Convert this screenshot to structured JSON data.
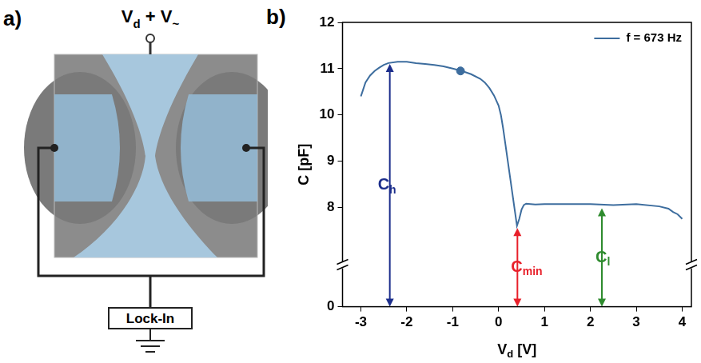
{
  "panel_a": {
    "label": "a)",
    "top_label": [
      {
        "text": "V",
        "sub": "d"
      },
      {
        "text": " + V",
        "sub": "~"
      }
    ],
    "box_label": "Lock-In"
  },
  "chart_data": {
    "panel_label": "b)",
    "type": "line",
    "x_label": [
      {
        "text": "V",
        "sub": "d"
      },
      {
        "text": " [V]"
      }
    ],
    "y_label": "C [pF]",
    "x": [
      -3,
      -2.95,
      -2.9,
      -2.8,
      -2.7,
      -2.6,
      -2.5,
      -2.4,
      -2.2,
      -2,
      -1.8,
      -1.6,
      -1.4,
      -1.2,
      -1,
      -0.8,
      -0.6,
      -0.4,
      -0.3,
      -0.2,
      -0.1,
      0,
      0.05,
      0.1,
      0.15,
      0.2,
      0.25,
      0.3,
      0.35,
      0.4,
      0.45,
      0.5,
      0.55,
      0.6,
      0.8,
      1,
      1.5,
      2,
      2.5,
      3,
      3.5,
      3.7,
      3.8,
      3.9,
      4
    ],
    "series": [
      {
        "name": "f = 673 Hz",
        "color": "#3d6d9e",
        "values": [
          10.4,
          10.55,
          10.7,
          10.85,
          10.95,
          11.02,
          11.08,
          11.12,
          11.15,
          11.15,
          11.12,
          11.1,
          11.08,
          11.05,
          11.0,
          10.95,
          10.88,
          10.78,
          10.7,
          10.58,
          10.42,
          10.2,
          10.0,
          9.7,
          9.35,
          9.0,
          8.65,
          8.3,
          7.95,
          7.6,
          7.75,
          7.95,
          8.05,
          8.08,
          8.06,
          8.07,
          8.07,
          8.07,
          8.05,
          8.07,
          8.02,
          7.97,
          7.9,
          7.85,
          7.75
        ]
      }
    ],
    "highlight": {
      "x": -0.83,
      "y": 10.95
    },
    "xlim": [
      -3.4,
      4.2
    ],
    "xticks": [
      -3,
      -2,
      -1,
      0,
      1,
      2,
      3,
      4
    ],
    "ylim": [
      0,
      12
    ],
    "yticks": [
      0,
      8,
      9,
      10,
      11,
      12
    ],
    "ybreak": [
      0.9,
      6.75
    ],
    "annotations": [
      {
        "label": [
          {
            "text": "C",
            "sub": "h"
          }
        ],
        "x": -2.37,
        "from": 0,
        "to": 11.1,
        "color": "#1c2e8c"
      },
      {
        "label": [
          {
            "text": "C",
            "sub": "min"
          }
        ],
        "x": 0.41,
        "from": 0,
        "to": 7.55,
        "color": "#e8202a"
      },
      {
        "label": [
          {
            "text": "C",
            "sub": "l"
          }
        ],
        "x": 2.25,
        "from": 0,
        "to": 7.98,
        "color": "#2e8b2e"
      }
    ],
    "legend": "upper right",
    "grid": false
  }
}
